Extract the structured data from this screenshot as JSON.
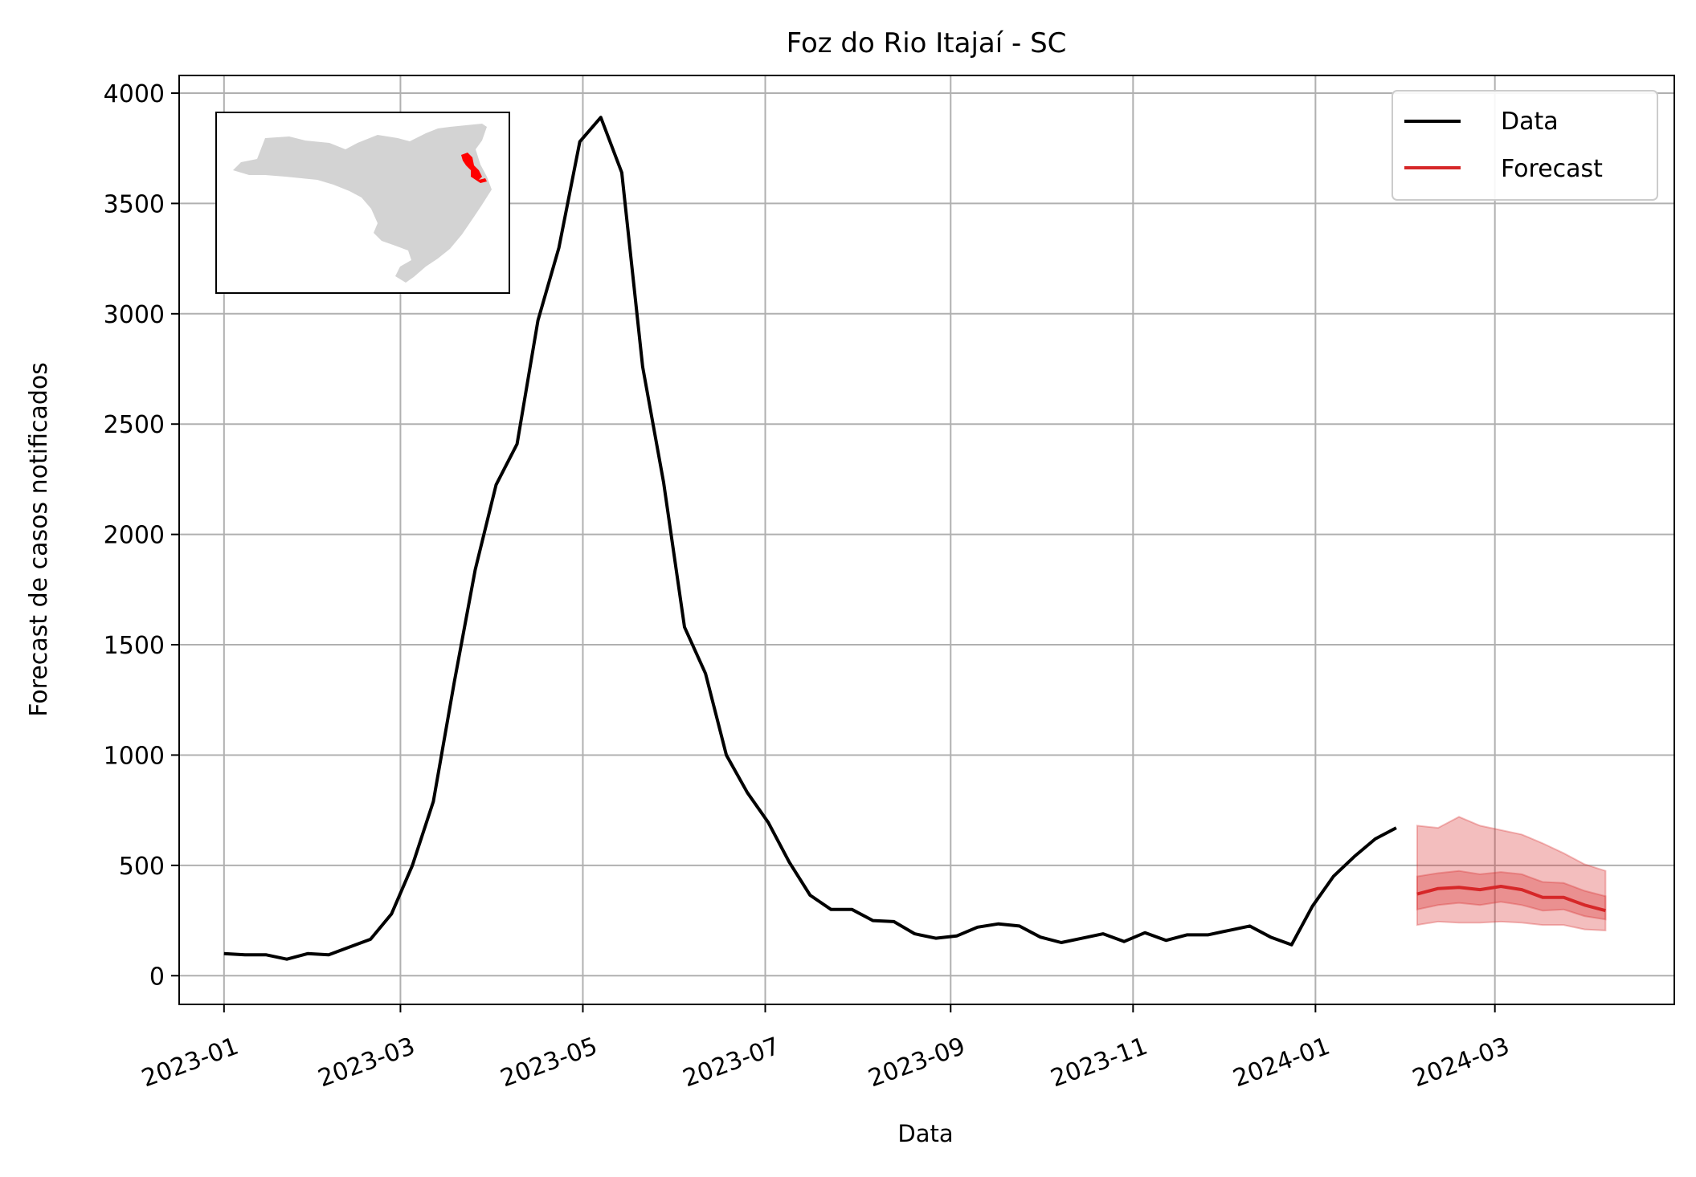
{
  "chart_data": {
    "type": "line",
    "title": "Foz do Rio Itajaí - SC",
    "xlabel": "Data",
    "ylabel": "Forecast de casos notificados",
    "ylim": [
      -130,
      4080
    ],
    "yticks": [
      0,
      500,
      1000,
      1500,
      2000,
      2500,
      3000,
      3500,
      4000
    ],
    "xlim": [
      "2022-12-17",
      "2024-04-30"
    ],
    "xticks": [
      "2023-01-01",
      "2023-03-01",
      "2023-05-01",
      "2023-07-01",
      "2023-09-01",
      "2023-11-01",
      "2024-01-01",
      "2024-03-01"
    ],
    "xtick_labels": [
      "2023-01",
      "2023-03",
      "2023-05",
      "2023-07",
      "2023-09",
      "2023-11",
      "2024-01",
      "2024-03"
    ],
    "grid": true,
    "legend_position": "top-right",
    "series": [
      {
        "name": "Data",
        "color": "#000000",
        "points": [
          [
            "2023-01-01",
            100
          ],
          [
            "2023-01-08",
            95
          ],
          [
            "2023-01-15",
            95
          ],
          [
            "2023-01-22",
            75
          ],
          [
            "2023-01-29",
            100
          ],
          [
            "2023-02-05",
            95
          ],
          [
            "2023-02-12",
            130
          ],
          [
            "2023-02-19",
            165
          ],
          [
            "2023-02-26",
            280
          ],
          [
            "2023-03-05",
            500
          ],
          [
            "2023-03-12",
            790
          ],
          [
            "2023-03-19",
            1330
          ],
          [
            "2023-03-26",
            1840
          ],
          [
            "2023-04-02",
            2225
          ],
          [
            "2023-04-09",
            2410
          ],
          [
            "2023-04-16",
            2970
          ],
          [
            "2023-04-23",
            3300
          ],
          [
            "2023-04-30",
            3780
          ],
          [
            "2023-05-07",
            3890
          ],
          [
            "2023-05-14",
            3640
          ],
          [
            "2023-05-21",
            2760
          ],
          [
            "2023-05-28",
            2235
          ],
          [
            "2023-06-04",
            1580
          ],
          [
            "2023-06-11",
            1370
          ],
          [
            "2023-06-18",
            1000
          ],
          [
            "2023-06-25",
            830
          ],
          [
            "2023-07-02",
            695
          ],
          [
            "2023-07-09",
            515
          ],
          [
            "2023-07-16",
            365
          ],
          [
            "2023-07-23",
            300
          ],
          [
            "2023-07-30",
            300
          ],
          [
            "2023-08-06",
            250
          ],
          [
            "2023-08-13",
            245
          ],
          [
            "2023-08-20",
            190
          ],
          [
            "2023-08-27",
            170
          ],
          [
            "2023-09-03",
            180
          ],
          [
            "2023-09-10",
            220
          ],
          [
            "2023-09-17",
            235
          ],
          [
            "2023-09-24",
            225
          ],
          [
            "2023-10-01",
            175
          ],
          [
            "2023-10-08",
            150
          ],
          [
            "2023-10-15",
            170
          ],
          [
            "2023-10-22",
            190
          ],
          [
            "2023-10-29",
            155
          ],
          [
            "2023-11-05",
            195
          ],
          [
            "2023-11-12",
            160
          ],
          [
            "2023-11-19",
            185
          ],
          [
            "2023-11-26",
            185
          ],
          [
            "2023-12-03",
            205
          ],
          [
            "2023-12-10",
            225
          ],
          [
            "2023-12-17",
            175
          ],
          [
            "2023-12-24",
            140
          ],
          [
            "2023-12-31",
            315
          ],
          [
            "2024-01-07",
            450
          ],
          [
            "2024-01-14",
            540
          ],
          [
            "2024-01-21",
            620
          ],
          [
            "2024-01-28",
            670
          ]
        ]
      },
      {
        "name": "Forecast",
        "color": "#d62728",
        "points": [
          [
            "2024-02-04",
            370
          ],
          [
            "2024-02-11",
            395
          ],
          [
            "2024-02-18",
            400
          ],
          [
            "2024-02-25",
            390
          ],
          [
            "2024-03-03",
            405
          ],
          [
            "2024-03-10",
            390
          ],
          [
            "2024-03-17",
            355
          ],
          [
            "2024-03-24",
            355
          ],
          [
            "2024-03-31",
            320
          ],
          [
            "2024-04-07",
            295
          ]
        ],
        "inner_band": {
          "lower": [
            300,
            320,
            330,
            320,
            335,
            320,
            295,
            300,
            270,
            255
          ],
          "upper": [
            450,
            465,
            475,
            460,
            470,
            460,
            425,
            420,
            385,
            360
          ]
        },
        "outer_band": {
          "lower": [
            230,
            245,
            240,
            240,
            245,
            240,
            230,
            230,
            210,
            205
          ],
          "upper": [
            680,
            670,
            720,
            680,
            660,
            640,
            600,
            555,
            505,
            475
          ]
        }
      }
    ],
    "inset_map": {
      "region": "Santa Catarina",
      "highlight_color": "#ff0000",
      "base_color": "#d3d3d3"
    }
  }
}
